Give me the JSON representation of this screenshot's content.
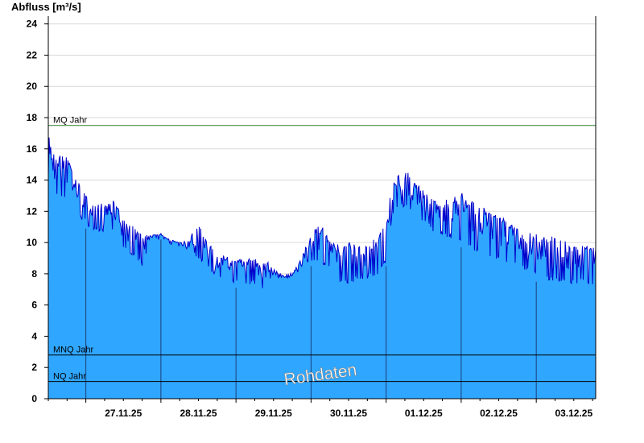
{
  "chart_data": {
    "type": "area",
    "ylabel": "Abfluss [m³/s]",
    "ylim": [
      0,
      24.5
    ],
    "yticks": [
      0,
      2,
      4,
      6,
      8,
      10,
      12,
      14,
      16,
      18,
      20,
      22,
      24
    ],
    "xlim": [
      "26.11.25 12:00",
      "03.12.25 19:00"
    ],
    "day_labels": [
      "27.11.25",
      "28.11.25",
      "29.11.25",
      "30.11.25",
      "01.12.25",
      "02.12.25",
      "03.12.25"
    ],
    "grid": true,
    "colors": {
      "area_fill": "#2fa6ff",
      "line": "#0000cc",
      "mq_line": "#2e7d2e",
      "ref_line": "#000000",
      "grid": "#d9d9d9"
    },
    "reference_lines": [
      {
        "name": "MQ Jahr",
        "value": 17.5
      },
      {
        "name": "MNQ Jahr",
        "value": 2.8
      },
      {
        "name": "NQ Jahr",
        "value": 1.1
      }
    ],
    "series": [
      {
        "x_unit": "time",
        "envelope_x": [
          "26.11.25 12:00",
          "26.11.25 13:00",
          "26.11.25 14:00",
          "26.11.25 18:00",
          "26.11.25 20:00",
          "27.11.25 00:00",
          "27.11.25 03:00",
          "27.11.25 06:00",
          "27.11.25 09:00",
          "27.11.25 12:00",
          "27.11.25 15:00",
          "27.11.25 18:00",
          "27.11.25 21:00",
          "28.11.25 00:00",
          "28.11.25 03:00",
          "28.11.25 06:00",
          "28.11.25 08:00",
          "28.11.25 12:00",
          "28.11.25 15:00",
          "28.11.25 18:00",
          "28.11.25 21:00",
          "29.11.25 00:00",
          "29.11.25 06:00",
          "29.11.25 10:00",
          "29.11.25 12:00",
          "29.11.25 15:00",
          "29.11.25 18:00",
          "29.11.25 21:00",
          "30.11.25 00:00",
          "30.11.25 03:00",
          "30.11.25 06:00",
          "30.11.25 09:00",
          "30.11.25 12:00",
          "30.11.25 15:00",
          "30.11.25 18:00",
          "30.11.25 21:00",
          "01.12.25 00:00",
          "01.12.25 02:00",
          "01.12.25 04:00",
          "01.12.25 06:00",
          "01.12.25 09:00",
          "01.12.25 12:00",
          "01.12.25 15:00",
          "01.12.25 18:00",
          "01.12.25 21:00",
          "02.12.25 00:00",
          "02.12.25 03:00",
          "02.12.25 06:00",
          "02.12.25 09:00",
          "02.12.25 12:00",
          "02.12.25 15:00",
          "02.12.25 18:00",
          "02.12.25 21:00",
          "03.12.25 00:00",
          "03.12.25 03:00",
          "03.12.25 06:00",
          "03.12.25 09:00",
          "03.12.25 12:00",
          "03.12.25 15:00",
          "03.12.25 18:00",
          "03.12.25 19:00"
        ],
        "envelope_y": [
          17.0,
          16.2,
          15.8,
          15.5,
          14.5,
          13.2,
          12.5,
          12.5,
          12.8,
          11.5,
          11.2,
          10.5,
          10.5,
          10.5,
          10.2,
          10.0,
          10.2,
          11.3,
          10.0,
          9.4,
          9.2,
          9.0,
          9.0,
          8.8,
          8.3,
          8.0,
          8.0,
          9.2,
          10.6,
          11.2,
          10.2,
          10.0,
          10.0,
          9.8,
          9.8,
          10.5,
          11.3,
          13.8,
          14.5,
          14.8,
          14.0,
          13.3,
          13.0,
          12.8,
          12.8,
          13.2,
          12.7,
          12.4,
          12.0,
          11.8,
          11.3,
          11.0,
          10.8,
          10.6,
          10.4,
          10.4,
          10.2,
          9.8,
          10.0,
          9.8,
          9.8
        ],
        "minimum_y": [
          14.0,
          13.5,
          13.0,
          12.8,
          12.0,
          11.2,
          10.6,
          10.5,
          10.8,
          9.5,
          9.2,
          8.5,
          10.4,
          10.5,
          10.0,
          10.0,
          9.2,
          9.0,
          8.3,
          7.8,
          7.6,
          7.4,
          7.3,
          6.8,
          7.6,
          7.7,
          7.8,
          8.3,
          8.8,
          8.6,
          8.4,
          7.4,
          7.3,
          7.6,
          7.7,
          7.8,
          8.8,
          11.8,
          12.3,
          12.2,
          11.8,
          11.3,
          10.7,
          10.4,
          10.2,
          10.0,
          9.6,
          9.2,
          9.0,
          8.8,
          8.6,
          8.4,
          8.2,
          7.8,
          7.6,
          7.4,
          7.4,
          7.3,
          7.4,
          7.3,
          8.0
        ]
      }
    ]
  },
  "watermark": "Rohdaten"
}
